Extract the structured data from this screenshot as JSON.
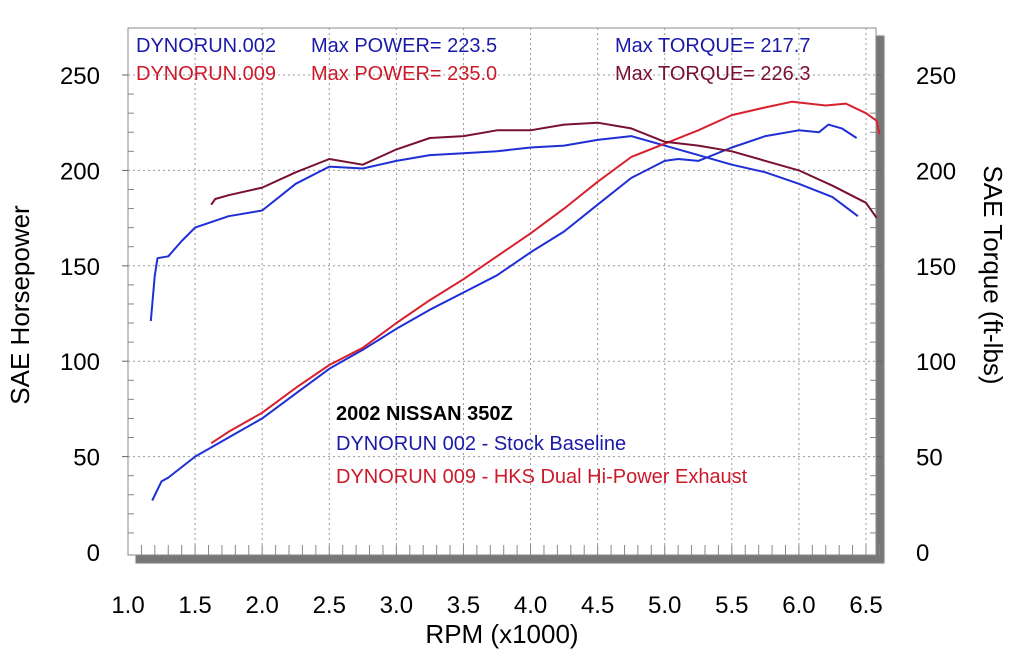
{
  "chart_data": {
    "type": "line",
    "title": "",
    "xlabel": "RPM (x1000)",
    "ylabel_left": "SAE Horsepower",
    "ylabel_right": "SAE Torque (ft-lbs)",
    "xlim": [
      1.0,
      6.6
    ],
    "ylim": [
      0,
      270
    ],
    "x_ticks": [
      "1.0",
      "1.5",
      "2.0",
      "2.5",
      "3.0",
      "3.5",
      "4.0",
      "4.5",
      "5.0",
      "5.5",
      "6.0",
      "6.5"
    ],
    "y_ticks": [
      "0",
      "50",
      "100",
      "150",
      "200",
      "250"
    ],
    "grid": true,
    "header": [
      {
        "run": "DYNORUN.002",
        "power_text": "Max POWER= 223.5",
        "torque_text": "Max TORQUE= 217.7",
        "color": "#1a1aa8"
      },
      {
        "run": "DYNORUN.009",
        "power_text": "Max POWER= 235.0",
        "torque_text": "Max TORQUE= 226.3",
        "color": "#cc1a2a"
      }
    ],
    "annotation": {
      "title": "2002 NISSAN 350Z",
      "lines": [
        {
          "text": "DYNORUN 002 - Stock Baseline",
          "color": "#1a1aa8"
        },
        {
          "text": "DYNORUN 009 - HKS Dual Hi-Power Exhaust",
          "color": "#cc1a2a"
        }
      ]
    },
    "series": [
      {
        "run": "DYNORUN.002",
        "measure": "power",
        "color": "#1f2fd6",
        "points": [
          [
            1.18,
            27
          ],
          [
            1.25,
            37
          ],
          [
            1.3,
            39
          ],
          [
            1.5,
            50
          ],
          [
            1.75,
            60
          ],
          [
            2.0,
            70
          ],
          [
            2.25,
            83
          ],
          [
            2.5,
            96
          ],
          [
            2.75,
            106
          ],
          [
            3.0,
            117
          ],
          [
            3.25,
            127
          ],
          [
            3.5,
            136
          ],
          [
            3.75,
            145
          ],
          [
            4.0,
            157
          ],
          [
            4.25,
            168
          ],
          [
            4.5,
            182
          ],
          [
            4.75,
            196
          ],
          [
            5.0,
            205
          ],
          [
            5.1,
            206
          ],
          [
            5.25,
            205
          ],
          [
            5.5,
            212
          ],
          [
            5.75,
            218
          ],
          [
            6.0,
            221
          ],
          [
            6.15,
            220
          ],
          [
            6.22,
            224
          ],
          [
            6.32,
            222
          ],
          [
            6.43,
            217
          ]
        ]
      },
      {
        "run": "DYNORUN.002",
        "measure": "torque",
        "color": "#1f2fd6",
        "points": [
          [
            1.17,
            121
          ],
          [
            1.2,
            145
          ],
          [
            1.22,
            154
          ],
          [
            1.3,
            155
          ],
          [
            1.4,
            163
          ],
          [
            1.5,
            170
          ],
          [
            1.75,
            176
          ],
          [
            2.0,
            179
          ],
          [
            2.25,
            193
          ],
          [
            2.5,
            202
          ],
          [
            2.75,
            201
          ],
          [
            3.0,
            205
          ],
          [
            3.25,
            208
          ],
          [
            3.5,
            209
          ],
          [
            3.75,
            210
          ],
          [
            4.0,
            212
          ],
          [
            4.25,
            213
          ],
          [
            4.5,
            216
          ],
          [
            4.75,
            218
          ],
          [
            5.0,
            213
          ],
          [
            5.25,
            208
          ],
          [
            5.5,
            203
          ],
          [
            5.75,
            199
          ],
          [
            6.0,
            193
          ],
          [
            6.25,
            186
          ],
          [
            6.44,
            176
          ]
        ]
      },
      {
        "run": "DYNORUN.009",
        "measure": "power",
        "color": "#d8202f",
        "points": [
          [
            1.62,
            57
          ],
          [
            1.75,
            63
          ],
          [
            2.0,
            73
          ],
          [
            2.25,
            86
          ],
          [
            2.5,
            98
          ],
          [
            2.75,
            107
          ],
          [
            3.0,
            120
          ],
          [
            3.25,
            132
          ],
          [
            3.5,
            143
          ],
          [
            3.75,
            155
          ],
          [
            4.0,
            167
          ],
          [
            4.25,
            180
          ],
          [
            4.5,
            194
          ],
          [
            4.75,
            207
          ],
          [
            5.0,
            214
          ],
          [
            5.25,
            221
          ],
          [
            5.5,
            229
          ],
          [
            5.75,
            233
          ],
          [
            5.95,
            236
          ],
          [
            6.2,
            234
          ],
          [
            6.35,
            235
          ],
          [
            6.5,
            230
          ],
          [
            6.58,
            226
          ],
          [
            6.6,
            219
          ]
        ]
      },
      {
        "run": "DYNORUN.009",
        "measure": "torque",
        "color": "#7a1030",
        "points": [
          [
            1.62,
            182
          ],
          [
            1.65,
            185
          ],
          [
            1.75,
            187
          ],
          [
            2.0,
            191
          ],
          [
            2.25,
            199
          ],
          [
            2.5,
            206
          ],
          [
            2.75,
            203
          ],
          [
            3.0,
            211
          ],
          [
            3.25,
            217
          ],
          [
            3.5,
            218
          ],
          [
            3.75,
            221
          ],
          [
            4.0,
            221
          ],
          [
            4.25,
            224
          ],
          [
            4.5,
            225
          ],
          [
            4.75,
            222
          ],
          [
            5.0,
            215
          ],
          [
            5.25,
            213
          ],
          [
            5.5,
            210
          ],
          [
            5.75,
            205
          ],
          [
            6.0,
            200
          ],
          [
            6.25,
            192
          ],
          [
            6.5,
            183
          ],
          [
            6.58,
            175
          ]
        ]
      }
    ]
  }
}
